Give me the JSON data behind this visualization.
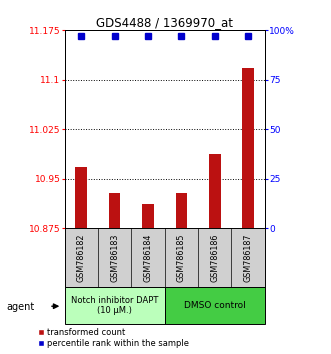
{
  "title": "GDS4488 / 1369970_at",
  "samples": [
    "GSM786182",
    "GSM786183",
    "GSM786184",
    "GSM786185",
    "GSM786186",
    "GSM786187"
  ],
  "red_values": [
    10.968,
    10.928,
    10.912,
    10.928,
    10.988,
    11.118
  ],
  "blue_values": [
    97,
    97,
    97,
    97,
    97,
    97
  ],
  "ylim_left": [
    10.875,
    11.175
  ],
  "ylim_right": [
    0,
    100
  ],
  "yticks_left": [
    10.875,
    10.95,
    11.025,
    11.1,
    11.175
  ],
  "yticks_right": [
    0,
    25,
    50,
    75,
    100
  ],
  "ytick_labels_left": [
    "10.875",
    "10.95",
    "11.025",
    "11.1",
    "11.175"
  ],
  "ytick_labels_right": [
    "0",
    "25",
    "50",
    "75",
    "100%"
  ],
  "hlines": [
    10.95,
    11.025,
    11.1
  ],
  "bar_color": "#bb1111",
  "dot_color": "#0000cc",
  "group1_label": "Notch inhibitor DAPT\n(10 μM.)",
  "group2_label": "DMSO control",
  "group1_color": "#bbffbb",
  "group2_color": "#44cc44",
  "agent_label": "agent",
  "legend_red": "transformed count",
  "legend_blue": "percentile rank within the sample",
  "bar_width": 0.35,
  "dot_size": 5,
  "bg_color": "#ffffff"
}
